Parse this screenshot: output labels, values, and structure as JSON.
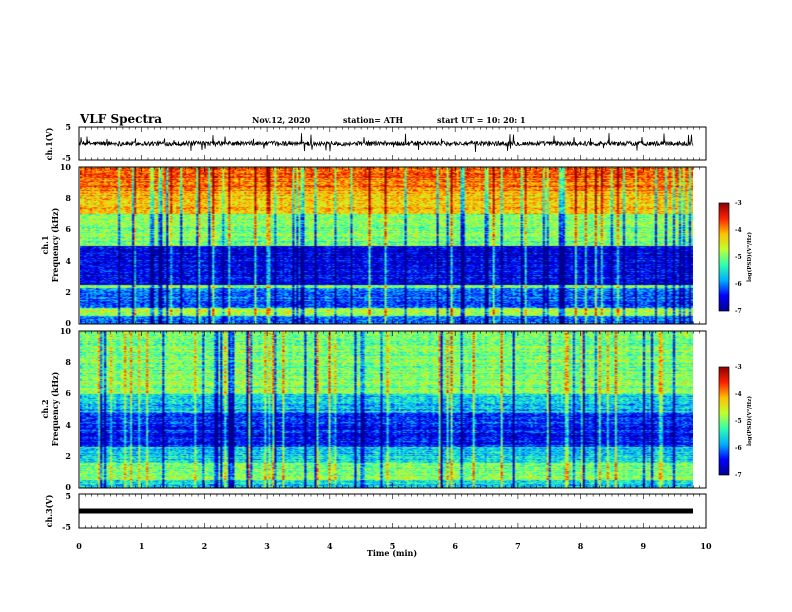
{
  "header": {
    "title": "VLF Spectra",
    "date": "Nov.12, 2020",
    "station": "station= ATH",
    "start": "start  UT =    10: 20: 1"
  },
  "colorbar": {
    "label": "log(PSD)(V²/Hz)",
    "ticks": [
      "-3",
      "-4",
      "-5",
      "-6",
      "-7"
    ],
    "colors": [
      "#00008f",
      "#0000ff",
      "#00b0ff",
      "#30ffb0",
      "#c0ff30",
      "#ffc000",
      "#ff2000",
      "#8b0000"
    ]
  },
  "chart_data": [
    {
      "type": "line",
      "title": "VLF Spectra",
      "ylabel": "ch.1(V)",
      "xlim": [
        0,
        10
      ],
      "ylim": [
        -5,
        5
      ],
      "y_ticks": [
        "5",
        "-5"
      ],
      "series": [
        {
          "color": "#000000",
          "x_range": [
            0,
            9.8
          ],
          "mean": 0,
          "range": [
            -2.7,
            3.5
          ]
        }
      ]
    },
    {
      "type": "heatmap",
      "ylabel": "ch.1\nFrequency (kHz)",
      "xlim": [
        0,
        10
      ],
      "ylim": [
        0,
        10
      ],
      "y_ticks": [
        "0",
        "2",
        "4",
        "6",
        "8",
        "10"
      ],
      "data_x_range": [
        0,
        9.8
      ],
      "zlim": [
        -7,
        -3
      ],
      "zlabel": "log(PSD)(V²/Hz)",
      "bands_khz": [
        {
          "from": 0,
          "to": 0.5,
          "z": -6.0
        },
        {
          "from": 0.5,
          "to": 1.0,
          "z": -4.8
        },
        {
          "from": 1.0,
          "to": 2.3,
          "z": -6.1
        },
        {
          "from": 2.3,
          "to": 2.5,
          "z": -5.0
        },
        {
          "from": 2.5,
          "to": 5.0,
          "z": -6.6
        },
        {
          "from": 5.0,
          "to": 7.0,
          "z": -5.0
        },
        {
          "from": 7.0,
          "to": 8.5,
          "z": -4.3
        },
        {
          "from": 8.5,
          "to": 10.0,
          "z": -3.8
        }
      ]
    },
    {
      "type": "heatmap",
      "ylabel": "ch.2\nFrequency (kHz)",
      "xlim": [
        0,
        10
      ],
      "ylim": [
        0,
        10
      ],
      "y_ticks": [
        "0",
        "2",
        "4",
        "6",
        "8",
        "10"
      ],
      "data_x_range": [
        0,
        9.8
      ],
      "zlim": [
        -7,
        -3
      ],
      "zlabel": "log(PSD)(V²/Hz)",
      "bands_khz": [
        {
          "from": 0,
          "to": 0.5,
          "z": -5.6
        },
        {
          "from": 0.5,
          "to": 1.6,
          "z": -5.0
        },
        {
          "from": 1.6,
          "to": 2.6,
          "z": -5.6
        },
        {
          "from": 2.6,
          "to": 4.8,
          "z": -6.4
        },
        {
          "from": 4.8,
          "to": 6.0,
          "z": -5.7
        },
        {
          "from": 6.0,
          "to": 10.0,
          "z": -5.0
        }
      ]
    },
    {
      "type": "line",
      "ylabel": "ch.3(V)",
      "xlabel": "Time  (min)",
      "xlim": [
        0,
        10
      ],
      "ylim": [
        -5,
        5
      ],
      "y_ticks": [
        "5",
        "-5"
      ],
      "x_ticks": [
        "0",
        "1",
        "2",
        "3",
        "4",
        "5",
        "6",
        "7",
        "8",
        "9",
        "10"
      ],
      "series": [
        {
          "color": "#000000",
          "x_range": [
            0,
            9.8
          ],
          "value": 0
        }
      ]
    }
  ]
}
